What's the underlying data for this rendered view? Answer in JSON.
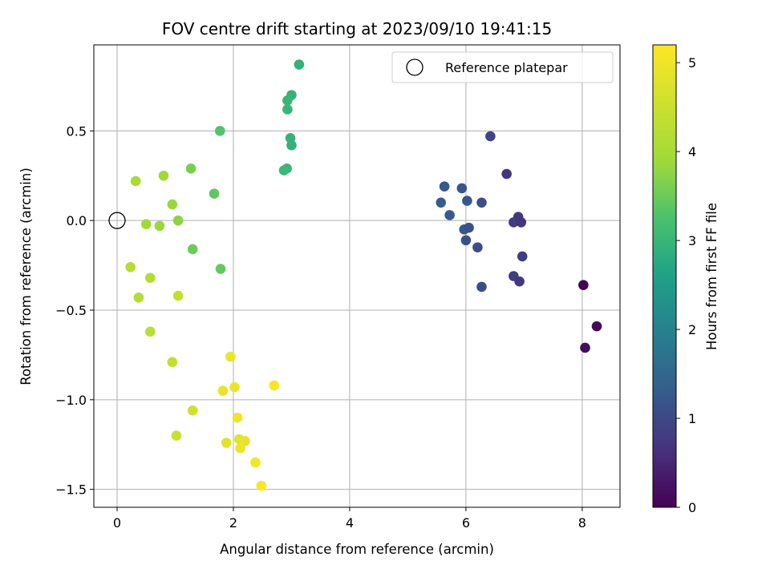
{
  "chart_data": {
    "type": "scatter",
    "title": "FOV centre drift starting at 2023/09/10 19:41:15",
    "xlabel": "Angular distance from reference (arcmin)",
    "ylabel": "Rotation from reference (arcmin)",
    "xlim": [
      -0.4,
      8.65
    ],
    "ylim": [
      -1.6,
      0.98
    ],
    "xticks": [
      0,
      2,
      4,
      6,
      8
    ],
    "xtick_labels": [
      "0",
      "2",
      "4",
      "6",
      "8"
    ],
    "yticks": [
      -1.5,
      -1.0,
      -0.5,
      0.0,
      0.5
    ],
    "ytick_labels": [
      "−1.5",
      "−1.0",
      "−0.5",
      "0.0",
      "0.5"
    ],
    "grid": true,
    "legend": {
      "placement": "upper right",
      "entries": [
        {
          "label": "Reference platepar",
          "marker": "open-circle",
          "x": 0,
          "y": 0
        }
      ]
    },
    "colorbar": {
      "label": "Hours from first FF file",
      "colormap": "viridis",
      "range": [
        0,
        5.2
      ],
      "ticks": [
        0,
        1,
        2,
        3,
        4,
        5
      ],
      "tick_labels": [
        "0",
        "1",
        "2",
        "3",
        "4",
        "5"
      ]
    },
    "points": [
      {
        "x": 8.02,
        "y": -0.36,
        "c": 0.05
      },
      {
        "x": 8.25,
        "y": -0.59,
        "c": 0.1
      },
      {
        "x": 8.05,
        "y": -0.71,
        "c": 0.15
      },
      {
        "x": 6.42,
        "y": 0.47,
        "c": 0.95
      },
      {
        "x": 6.7,
        "y": 0.26,
        "c": 0.7
      },
      {
        "x": 6.9,
        "y": 0.02,
        "c": 0.75
      },
      {
        "x": 6.82,
        "y": -0.01,
        "c": 0.8
      },
      {
        "x": 6.95,
        "y": -0.01,
        "c": 0.7
      },
      {
        "x": 6.97,
        "y": -0.2,
        "c": 0.8
      },
      {
        "x": 6.82,
        "y": -0.31,
        "c": 0.8
      },
      {
        "x": 6.92,
        "y": -0.34,
        "c": 0.75
      },
      {
        "x": 5.63,
        "y": 0.19,
        "c": 1.25
      },
      {
        "x": 5.93,
        "y": 0.18,
        "c": 1.2
      },
      {
        "x": 5.57,
        "y": 0.1,
        "c": 1.3
      },
      {
        "x": 6.02,
        "y": 0.11,
        "c": 1.2
      },
      {
        "x": 6.27,
        "y": 0.1,
        "c": 1.1
      },
      {
        "x": 5.72,
        "y": 0.03,
        "c": 1.25
      },
      {
        "x": 5.97,
        "y": -0.05,
        "c": 1.2
      },
      {
        "x": 6.05,
        "y": -0.04,
        "c": 1.15
      },
      {
        "x": 6.0,
        "y": -0.11,
        "c": 1.1
      },
      {
        "x": 6.2,
        "y": -0.15,
        "c": 1.05
      },
      {
        "x": 6.27,
        "y": -0.37,
        "c": 1.05
      },
      {
        "x": 3.13,
        "y": 0.87,
        "c": 2.9
      },
      {
        "x": 3.0,
        "y": 0.7,
        "c": 2.95
      },
      {
        "x": 2.93,
        "y": 0.67,
        "c": 3.0
      },
      {
        "x": 2.93,
        "y": 0.62,
        "c": 3.0
      },
      {
        "x": 2.98,
        "y": 0.46,
        "c": 2.95
      },
      {
        "x": 3.0,
        "y": 0.42,
        "c": 2.95
      },
      {
        "x": 2.92,
        "y": 0.29,
        "c": 3.0
      },
      {
        "x": 2.87,
        "y": 0.28,
        "c": 3.05
      },
      {
        "x": 1.77,
        "y": 0.5,
        "c": 3.3
      },
      {
        "x": 1.67,
        "y": 0.15,
        "c": 3.4
      },
      {
        "x": 1.3,
        "y": -0.16,
        "c": 3.5
      },
      {
        "x": 1.78,
        "y": -0.27,
        "c": 3.45
      },
      {
        "x": 1.27,
        "y": 0.29,
        "c": 3.6
      },
      {
        "x": 0.32,
        "y": 0.22,
        "c": 4.0
      },
      {
        "x": 0.8,
        "y": 0.25,
        "c": 3.9
      },
      {
        "x": 0.95,
        "y": 0.09,
        "c": 3.85
      },
      {
        "x": 0.5,
        "y": -0.02,
        "c": 3.9
      },
      {
        "x": 0.73,
        "y": -0.03,
        "c": 3.85
      },
      {
        "x": 1.05,
        "y": 0.0,
        "c": 3.75
      },
      {
        "x": 0.23,
        "y": -0.26,
        "c": 4.2
      },
      {
        "x": 0.57,
        "y": -0.32,
        "c": 4.15
      },
      {
        "x": 0.37,
        "y": -0.43,
        "c": 4.2
      },
      {
        "x": 1.05,
        "y": -0.42,
        "c": 4.4
      },
      {
        "x": 0.57,
        "y": -0.62,
        "c": 4.25
      },
      {
        "x": 0.95,
        "y": -0.79,
        "c": 4.35
      },
      {
        "x": 1.3,
        "y": -1.06,
        "c": 4.55
      },
      {
        "x": 1.02,
        "y": -1.2,
        "c": 4.45
      },
      {
        "x": 1.82,
        "y": -0.95,
        "c": 4.9
      },
      {
        "x": 1.95,
        "y": -0.76,
        "c": 4.95
      },
      {
        "x": 2.02,
        "y": -0.93,
        "c": 4.95
      },
      {
        "x": 2.7,
        "y": -0.92,
        "c": 5.1
      },
      {
        "x": 2.07,
        "y": -1.1,
        "c": 5.0
      },
      {
        "x": 1.88,
        "y": -1.24,
        "c": 4.8
      },
      {
        "x": 2.1,
        "y": -1.22,
        "c": 4.85
      },
      {
        "x": 2.2,
        "y": -1.23,
        "c": 4.9
      },
      {
        "x": 2.12,
        "y": -1.27,
        "c": 4.95
      },
      {
        "x": 2.38,
        "y": -1.35,
        "c": 5.05
      },
      {
        "x": 2.48,
        "y": -1.48,
        "c": 5.15
      }
    ]
  }
}
